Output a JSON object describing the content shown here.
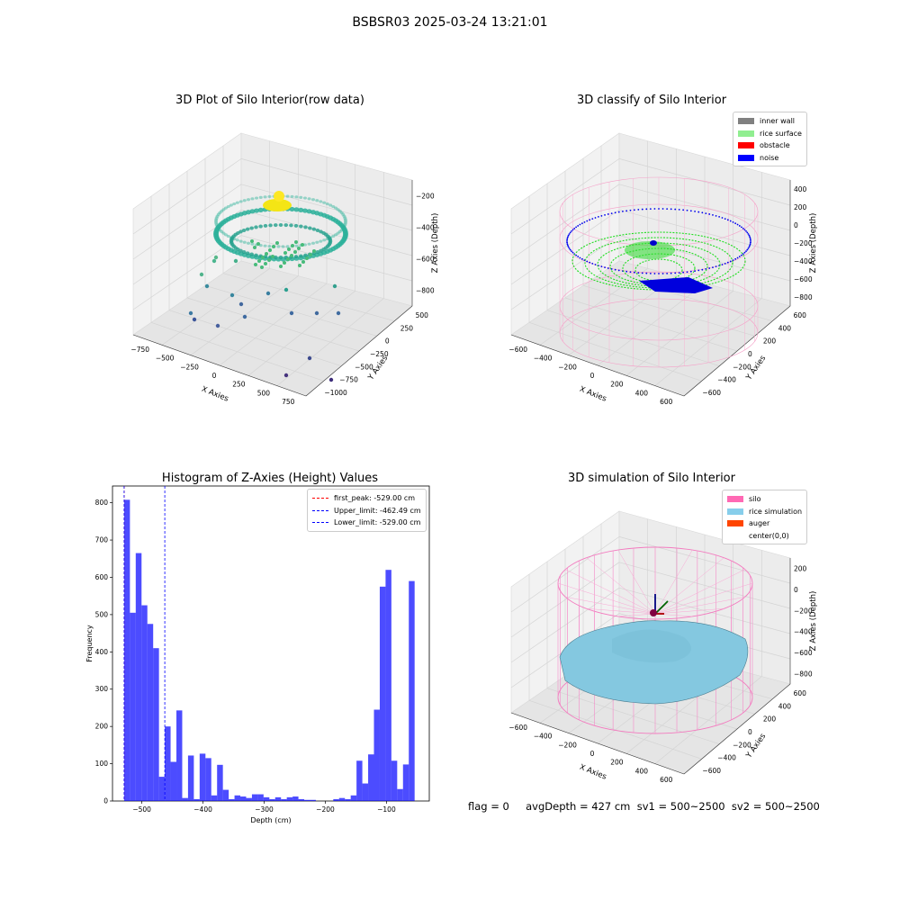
{
  "suptitle": "BSBSR03 2025-03-24 13:21:01",
  "footer": "flag = 0     avgDepth = 427 cm  sv1 = 500~2500  sv2 = 500~2500",
  "panel1": {
    "title": "3D Plot of Silo Interior(row data)",
    "xlabel": "X Axies",
    "ylabel": "Y Axies",
    "zlabel": "Z Axies (Depth)",
    "xticks": [
      "−750",
      "−500",
      "−250",
      "0",
      "250",
      "500",
      "750"
    ],
    "yticks": [
      "−1000",
      "−750",
      "−500",
      "−250",
      "0",
      "250",
      "500"
    ],
    "zticks": [
      "−200",
      "−400",
      "−600",
      "−800"
    ]
  },
  "panel2": {
    "title": "3D classify of Silo Interior",
    "xlabel": "X Axies",
    "ylabel": "Y Axies",
    "zlabel": "Z Axies (Depth)",
    "xticks": [
      "−600",
      "−400",
      "−200",
      "0",
      "200",
      "400",
      "600"
    ],
    "yticks": [
      "−600",
      "−400",
      "−200",
      "0",
      "200",
      "400",
      "600"
    ],
    "zticks": [
      "400",
      "200",
      "0",
      "−200",
      "−400",
      "−600",
      "−800"
    ],
    "legend": [
      {
        "label": "inner wall",
        "color": "#808080"
      },
      {
        "label": "rice surface",
        "color": "#90ee90"
      },
      {
        "label": "obstacle",
        "color": "#ff0000"
      },
      {
        "label": "noise",
        "color": "#0000ff"
      }
    ]
  },
  "panel4": {
    "title": "3D simulation of Silo Interior",
    "xlabel": "X Axies",
    "ylabel": "Y Axies",
    "zlabel": "Z Axies (Depth)",
    "xticks": [
      "−600",
      "−400",
      "−200",
      "0",
      "200",
      "400",
      "600"
    ],
    "yticks": [
      "−600",
      "−400",
      "−200",
      "0",
      "200",
      "400",
      "600"
    ],
    "zticks": [
      "200",
      "0",
      "−200",
      "−400",
      "−600",
      "−800"
    ],
    "legend": [
      {
        "label": "silo",
        "color": "#ff69b4"
      },
      {
        "label": "rice simulation",
        "color": "#87ceeb"
      },
      {
        "label": "auger",
        "color": "#ff4500"
      },
      {
        "label": "center(0,0)",
        "color": ""
      }
    ]
  },
  "chart_data": [
    {
      "type": "bar",
      "title": "Histogram of Z-Axies (Height) Values",
      "xlabel": "Depth (cm)",
      "ylabel": "Frequency",
      "xlim": [
        -548,
        -30
      ],
      "ylim": [
        0,
        845
      ],
      "xticks": [
        -500,
        -400,
        -300,
        -200,
        -100
      ],
      "yticks": [
        0,
        100,
        200,
        300,
        400,
        500,
        600,
        700,
        800
      ],
      "bin_width": 9.5,
      "bin_starts": [
        -529,
        -519.5,
        -510,
        -500.5,
        -491,
        -481.5,
        -472,
        -462.5,
        -453,
        -443.5,
        -434,
        -424.5,
        -415,
        -405.5,
        -396,
        -386.5,
        -377,
        -367.5,
        -358,
        -348.5,
        -339,
        -329.5,
        -320,
        -310.5,
        -301,
        -291.5,
        -282,
        -272.5,
        -263,
        -253.5,
        -244,
        -234.5,
        -225,
        -215.5,
        -206,
        -196.5,
        -187,
        -177.5,
        -168,
        -158.5,
        -149,
        -139.5,
        -130,
        -120.5,
        -111,
        -101.5,
        -92,
        -82.5,
        -73,
        -63.5
      ],
      "values": [
        808,
        505,
        665,
        525,
        475,
        410,
        65,
        200,
        105,
        243,
        8,
        122,
        5,
        127,
        115,
        15,
        97,
        30,
        5,
        15,
        12,
        8,
        18,
        18,
        10,
        5,
        10,
        5,
        10,
        12,
        5,
        3,
        3,
        0,
        0,
        0,
        5,
        8,
        5,
        15,
        108,
        47,
        125,
        245,
        575,
        620,
        108,
        32,
        98,
        590
      ],
      "color": "#0000ff",
      "vlines": [
        {
          "label": "first_peak: -529.00 cm",
          "x": -529,
          "color": "#ff0000"
        },
        {
          "label": "Upper_limit: -462.49 cm",
          "x": -462.49,
          "color": "#0000ff"
        },
        {
          "label": "Lower_limit: -529.00 cm",
          "x": -529,
          "color": "#0000ff"
        }
      ],
      "legend_loc": "upper right"
    }
  ]
}
